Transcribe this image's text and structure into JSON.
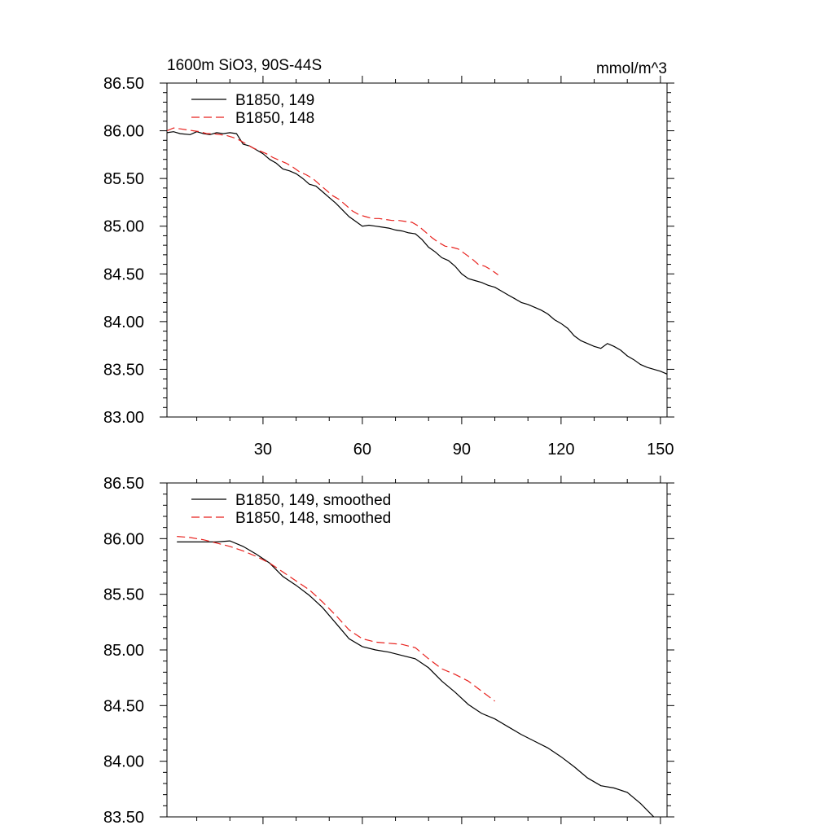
{
  "colors": {
    "series_149": "#000000",
    "series_148": "#e8221e",
    "axis": "#000000",
    "background": "#ffffff"
  },
  "chart_data": [
    {
      "type": "line",
      "title_left": "1600m SiO3, 90S-44S",
      "title_right": "mmol/m^3",
      "xlim": [
        1,
        152
      ],
      "ylim": [
        83.0,
        86.5
      ],
      "xticks": [
        "30",
        "60",
        "90",
        "120",
        "150"
      ],
      "yticks": [
        "83.00",
        "83.50",
        "84.00",
        "84.50",
        "85.00",
        "85.50",
        "86.00",
        "86.50"
      ],
      "legend_position": "top-left",
      "grid": false,
      "series": [
        {
          "name": "B1850, 149",
          "style": "solid",
          "x": [
            1,
            3,
            5,
            8,
            10,
            12,
            14,
            16,
            18,
            20,
            22,
            24,
            26,
            28,
            30,
            32,
            34,
            36,
            38,
            40,
            42,
            44,
            46,
            48,
            50,
            52,
            54,
            56,
            58,
            60,
            62,
            64,
            66,
            68,
            70,
            72,
            74,
            76,
            78,
            80,
            82,
            84,
            86,
            88,
            90,
            92,
            94,
            96,
            98,
            100,
            102,
            104,
            106,
            108,
            110,
            112,
            114,
            116,
            118,
            120,
            122,
            124,
            126,
            128,
            130,
            132,
            134,
            136,
            138,
            140,
            142,
            144,
            146,
            148,
            150,
            152
          ],
          "y": [
            85.98,
            85.99,
            85.97,
            85.96,
            85.99,
            85.97,
            85.96,
            85.98,
            85.97,
            85.98,
            85.97,
            85.86,
            85.84,
            85.8,
            85.76,
            85.7,
            85.66,
            85.6,
            85.58,
            85.55,
            85.5,
            85.44,
            85.42,
            85.36,
            85.3,
            85.24,
            85.17,
            85.1,
            85.05,
            85.0,
            85.01,
            85.0,
            84.99,
            84.98,
            84.96,
            84.95,
            84.93,
            84.92,
            84.86,
            84.78,
            84.73,
            84.67,
            84.64,
            84.58,
            84.5,
            84.45,
            84.43,
            84.41,
            84.38,
            84.36,
            84.32,
            84.28,
            84.24,
            84.2,
            84.18,
            84.15,
            84.12,
            84.08,
            84.02,
            83.98,
            83.93,
            83.85,
            83.8,
            83.77,
            83.74,
            83.72,
            83.77,
            83.74,
            83.7,
            83.64,
            83.6,
            83.55,
            83.52,
            83.5,
            83.48,
            83.45
          ]
        },
        {
          "name": "B1850, 148",
          "style": "dashed",
          "x": [
            1,
            3,
            5,
            7,
            9,
            11,
            13,
            15,
            17,
            19,
            21,
            23,
            25,
            27,
            29,
            31,
            33,
            35,
            37,
            39,
            41,
            43,
            45,
            47,
            49,
            51,
            53,
            55,
            57,
            59,
            61,
            63,
            65,
            67,
            69,
            71,
            73,
            75,
            77,
            79,
            81,
            83,
            85,
            87,
            89,
            91,
            93,
            95,
            97,
            99,
            101
          ],
          "y": [
            86.0,
            86.03,
            86.02,
            86.01,
            86.0,
            85.99,
            85.97,
            85.97,
            85.96,
            85.95,
            85.93,
            85.9,
            85.86,
            85.82,
            85.79,
            85.76,
            85.72,
            85.69,
            85.66,
            85.62,
            85.57,
            85.54,
            85.5,
            85.44,
            85.38,
            85.32,
            85.28,
            85.22,
            85.16,
            85.12,
            85.1,
            85.08,
            85.08,
            85.07,
            85.06,
            85.06,
            85.05,
            85.04,
            85.0,
            84.94,
            84.88,
            84.83,
            84.79,
            84.78,
            84.76,
            84.71,
            84.66,
            84.6,
            84.58,
            84.54,
            84.49
          ]
        }
      ]
    },
    {
      "type": "line",
      "xlim": [
        1,
        152
      ],
      "ylim": [
        83.5,
        86.5
      ],
      "xticks": [],
      "yticks": [
        "83.50",
        "84.00",
        "84.50",
        "85.00",
        "85.50",
        "86.00",
        "86.50"
      ],
      "legend_position": "top-left",
      "grid": false,
      "series": [
        {
          "name": "B1850, 149, smoothed",
          "style": "solid",
          "x": [
            4,
            8,
            12,
            16,
            20,
            24,
            28,
            32,
            36,
            40,
            44,
            48,
            52,
            56,
            60,
            64,
            68,
            72,
            76,
            80,
            84,
            88,
            92,
            96,
            100,
            104,
            108,
            112,
            116,
            120,
            124,
            128,
            132,
            136,
            140,
            144,
            148
          ],
          "y": [
            85.97,
            85.97,
            85.97,
            85.97,
            85.98,
            85.93,
            85.86,
            85.78,
            85.66,
            85.58,
            85.49,
            85.38,
            85.24,
            85.1,
            85.03,
            85.0,
            84.98,
            84.95,
            84.92,
            84.84,
            84.72,
            84.62,
            84.51,
            84.43,
            84.38,
            84.31,
            84.24,
            84.18,
            84.12,
            84.04,
            83.95,
            83.85,
            83.78,
            83.76,
            83.72,
            83.62,
            83.5
          ]
        },
        {
          "name": "B1850, 148, smoothed",
          "style": "dashed",
          "x": [
            4,
            8,
            12,
            16,
            20,
            24,
            28,
            32,
            36,
            40,
            44,
            48,
            52,
            56,
            60,
            64,
            68,
            72,
            76,
            80,
            84,
            88,
            92,
            96,
            100
          ],
          "y": [
            86.02,
            86.01,
            85.99,
            85.96,
            85.93,
            85.89,
            85.84,
            85.78,
            85.7,
            85.62,
            85.54,
            85.43,
            85.31,
            85.18,
            85.1,
            85.07,
            85.06,
            85.05,
            85.02,
            84.92,
            84.83,
            84.78,
            84.72,
            84.63,
            84.54
          ]
        }
      ]
    }
  ]
}
